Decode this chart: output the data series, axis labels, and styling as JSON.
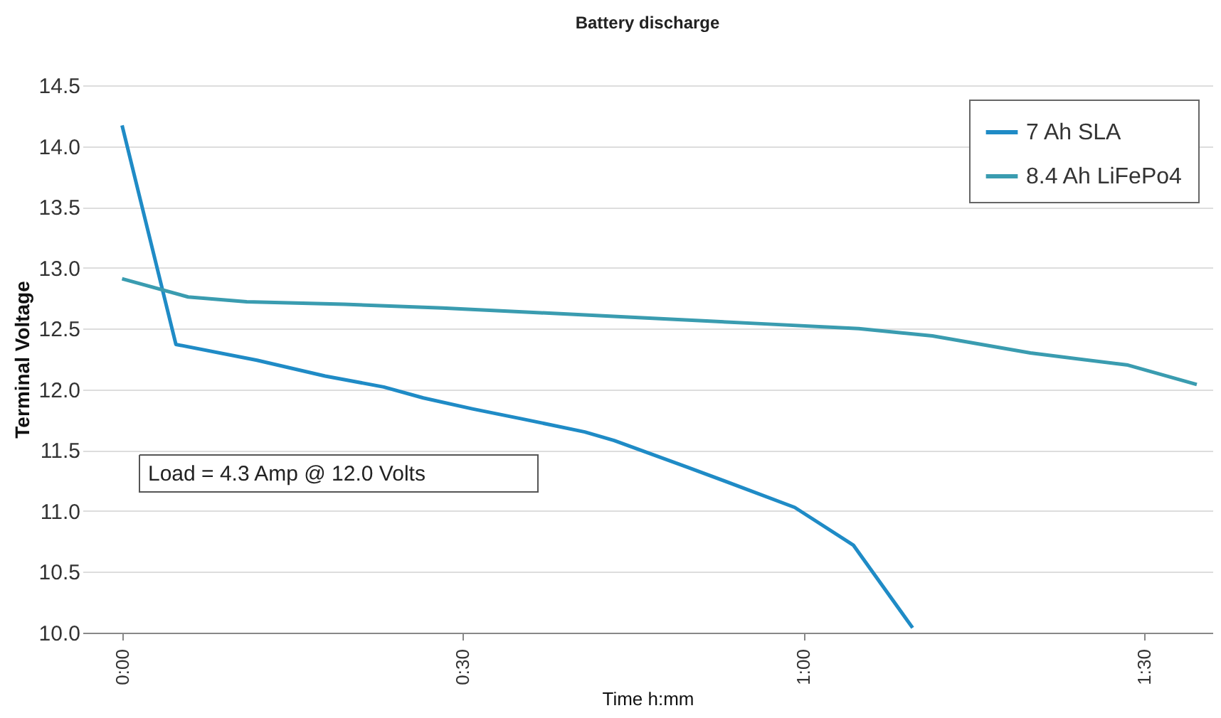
{
  "chart_data": {
    "type": "line",
    "title": "Battery discharge",
    "xlabel": "Time h:mm",
    "ylabel": "Terminal Voltage",
    "xlim": [
      -0.058,
      1.6
    ],
    "xticks": [
      {
        "value": 0,
        "label": "0:00"
      },
      {
        "value": 0.5,
        "label": "0:30"
      },
      {
        "value": 1,
        "label": "1:00"
      },
      {
        "value": 1.5,
        "label": "1:30"
      }
    ],
    "ylim": [
      10.0,
      14.5
    ],
    "yticks": [
      {
        "value": 10.0,
        "label": "10.0"
      },
      {
        "value": 10.5,
        "label": "10.5"
      },
      {
        "value": 11.0,
        "label": "11.0"
      },
      {
        "value": 11.5,
        "label": "11.5"
      },
      {
        "value": 12.0,
        "label": "12.0"
      },
      {
        "value": 12.5,
        "label": "12.5"
      },
      {
        "value": 13.0,
        "label": "13.0"
      },
      {
        "value": 13.5,
        "label": "13.5"
      },
      {
        "value": 14.0,
        "label": "14.0"
      },
      {
        "value": 14.5,
        "label": "14.5"
      }
    ],
    "grid": "y",
    "legend": "top right",
    "marker": "none",
    "line_style": "solid",
    "annotations": [
      "Load = 4.3 Amp @ 12.0 Volts"
    ],
    "series": [
      {
        "name": "7 Ah SLA",
        "color": "#1f8bc6",
        "x": [
          0,
          0.079,
          0.198,
          0.298,
          0.384,
          0.442,
          0.514,
          0.585,
          0.679,
          0.722,
          0.83,
          0.916,
          0.987,
          1.073,
          1.16
        ],
        "values": [
          14.17,
          12.37,
          12.24,
          12.11,
          12.02,
          11.93,
          11.84,
          11.76,
          11.65,
          11.58,
          11.36,
          11.18,
          11.03,
          10.72,
          10.04
        ]
      },
      {
        "name": "8.4 Ah LiFePo4",
        "color": "#3a9cb0",
        "x": [
          0,
          0.097,
          0.183,
          0.326,
          0.47,
          0.614,
          0.758,
          0.938,
          1.081,
          1.189,
          1.333,
          1.476,
          1.577
        ],
        "values": [
          12.91,
          12.76,
          12.72,
          12.7,
          12.67,
          12.63,
          12.59,
          12.54,
          12.5,
          12.44,
          12.3,
          12.2,
          12.04
        ]
      }
    ]
  }
}
